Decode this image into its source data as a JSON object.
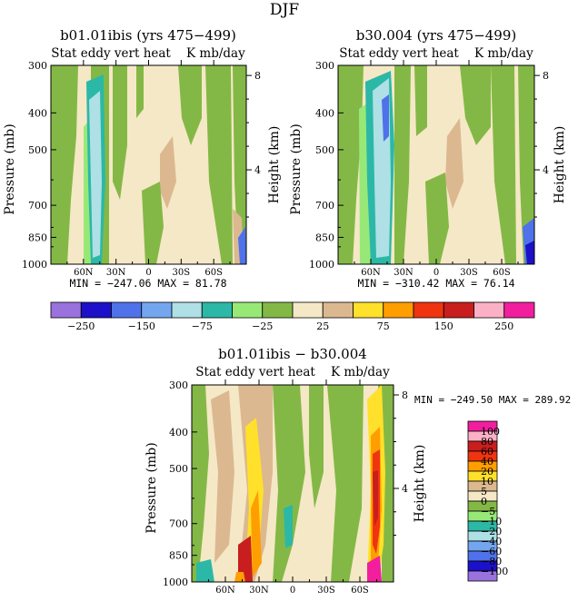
{
  "title": "DJF",
  "colors": {
    "abs": [
      "#9a72de",
      "#1c10c8",
      "#4f72ea",
      "#74a6f0",
      "#aee0e6",
      "#2cb8a6",
      "#98e878",
      "#84b846",
      "#f5e8c6",
      "#dcb890",
      "#ffe02a",
      "#ff9e00",
      "#f03410",
      "#c81e1e",
      "#fcb0c6",
      "#f21e9e"
    ],
    "diff": [
      "#9a72de",
      "#1c10c8",
      "#4f72ea",
      "#74a6f0",
      "#aee0e6",
      "#2cb8a6",
      "#98e878",
      "#84b846",
      "#f5e8c6",
      "#dcb890",
      "#ffe02a",
      "#ff9e00",
      "#f03410",
      "#c81e1e",
      "#fcb0c6",
      "#f21e9e"
    ]
  },
  "chart_data": [
    {
      "type": "heatmap",
      "title": "b01.01ibis (yrs 475−499)",
      "subtitle": "Stat eddy vert heat    K mb/day",
      "ylabel": "Pressure (mb)",
      "ylabel_right": "Height (km)",
      "y_ticks": [
        "300",
        "400",
        "500",
        "700",
        "850",
        "1000"
      ],
      "y_ticks_right": [
        "8",
        "4"
      ],
      "x_ticks": [
        "60N",
        "30N",
        "0",
        "30S",
        "60S"
      ],
      "min_label": "MIN = −247.06",
      "max_label": "MAX =  81.78",
      "min": -247.06,
      "max": 81.78
    },
    {
      "type": "heatmap",
      "title": "b30.004 (yrs 475−499)",
      "subtitle": "Stat eddy vert heat    K mb/day",
      "ylabel": "Pressure (mb)",
      "ylabel_right": "Height (km)",
      "y_ticks": [
        "300",
        "400",
        "500",
        "700",
        "850",
        "1000"
      ],
      "y_ticks_right": [
        "8",
        "4"
      ],
      "x_ticks": [
        "60N",
        "30N",
        "0",
        "30S",
        "60S"
      ],
      "min_label": "MIN = −310.42",
      "max_label": "MAX =  76.14",
      "min": -310.42,
      "max": 76.14
    },
    {
      "type": "heatmap",
      "title": "b01.01ibis − b30.004",
      "subtitle": "Stat eddy vert heat    K mb/day",
      "ylabel": "Pressure (mb)",
      "ylabel_right": "Height (km)",
      "y_ticks": [
        "300",
        "400",
        "500",
        "700",
        "850",
        "1000"
      ],
      "y_ticks_right": [
        "8",
        "4"
      ],
      "x_ticks": [
        "60N",
        "30N",
        "0",
        "30S",
        "60S"
      ],
      "min_label": "MIN = −249.50",
      "max_label": "MAX = 289.92",
      "min": -249.5,
      "max": 289.92
    }
  ],
  "colorbar_abs": {
    "labels": [
      "−250",
      "−150",
      "−75",
      "−25",
      "25",
      "75",
      "150",
      "250"
    ],
    "levels": [
      -300,
      -250,
      -200,
      -150,
      -100,
      -75,
      -50,
      -25,
      0,
      25,
      50,
      75,
      100,
      150,
      200,
      250
    ]
  },
  "colorbar_diff": {
    "labels": [
      "100",
      "80",
      "60",
      "40",
      "20",
      "10",
      "5",
      "0",
      "−5",
      "−10",
      "−20",
      "−40",
      "−60",
      "−80",
      "−100"
    ]
  }
}
